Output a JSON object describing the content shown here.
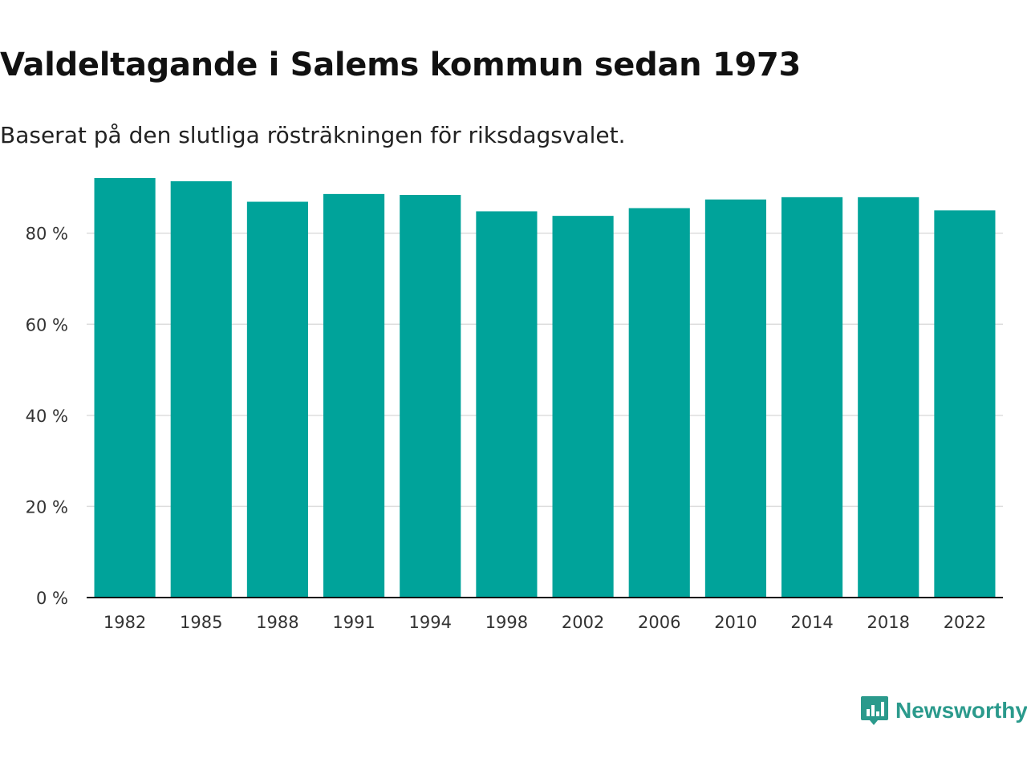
{
  "title": "Valdeltagande i Salems kommun sedan 1973",
  "subtitle": "Baserat på den slutliga rösträkningen för riksdagsvalet.",
  "brand": {
    "name": "Newsworthy",
    "icon": "chart-bubble-icon",
    "color": "#2b9a8c"
  },
  "chart_data": {
    "type": "bar",
    "title": "Valdeltagande i Salems kommun sedan 1973",
    "subtitle": "Baserat på den slutliga rösträkningen för riksdagsvalet.",
    "xlabel": "",
    "ylabel": "",
    "categories": [
      "1982",
      "1985",
      "1988",
      "1991",
      "1994",
      "1998",
      "2002",
      "2006",
      "2010",
      "2014",
      "2018",
      "2022"
    ],
    "values": [
      92.1,
      91.4,
      86.9,
      88.6,
      88.4,
      84.8,
      83.8,
      85.5,
      87.4,
      87.9,
      87.9,
      85.0
    ],
    "unit": "%",
    "ylim": [
      0,
      92.1
    ],
    "yticks": [
      0,
      20,
      40,
      60,
      80
    ],
    "ytick_labels": [
      "0 %",
      "20 %",
      "40 %",
      "60 %",
      "80 %"
    ],
    "grid": true,
    "bar_color": "#00a39a",
    "grid_color": "#dddddd",
    "axis_color": "#111111"
  }
}
